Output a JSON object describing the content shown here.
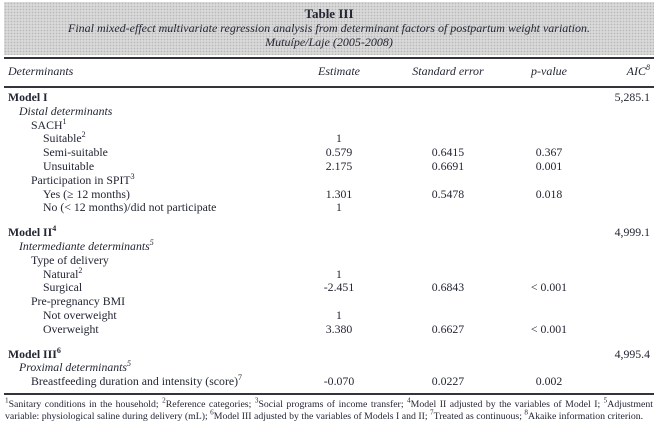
{
  "colors": {
    "header_bg": "#d9d9d9",
    "rule": "#33343c",
    "text": "#232633"
  },
  "title": {
    "number": "Table III",
    "caption": "Final mixed-effect multivariate regression analysis from determinant factors of postpartum weight variation.",
    "location": "Mutuípe/Laje (2005-2008)"
  },
  "columns": {
    "determinants": "Determinants",
    "estimate": "Estimate",
    "standard_error": "Standard error",
    "p_value": "p-value",
    "aic": "AIC",
    "aic_sup": "8"
  },
  "table": {
    "rows": [
      {
        "label": "Model I",
        "sup": "",
        "indent": 0,
        "style": "model",
        "estimate": "",
        "se": "",
        "p": "",
        "aic": "5,285.1"
      },
      {
        "label": "Distal determinants",
        "sup": "",
        "indent": 1,
        "style": "section",
        "estimate": "",
        "se": "",
        "p": "",
        "aic": ""
      },
      {
        "label": "SACH",
        "sup": "1",
        "indent": 2,
        "style": "plain",
        "estimate": "",
        "se": "",
        "p": "",
        "aic": ""
      },
      {
        "label": "Suitable",
        "sup": "2",
        "indent": 3,
        "style": "plain",
        "estimate": "1",
        "se": "",
        "p": "",
        "aic": ""
      },
      {
        "label": "Semi-suitable",
        "sup": "",
        "indent": 3,
        "style": "plain",
        "estimate": "0.579",
        "se": "0.6415",
        "p": "0.367",
        "aic": ""
      },
      {
        "label": "Unsuitable",
        "sup": "",
        "indent": 3,
        "style": "plain",
        "estimate": "2.175",
        "se": "0.6691",
        "p": "0.001",
        "aic": ""
      },
      {
        "label": "Participation in SPIT",
        "sup": "3",
        "indent": 2,
        "style": "plain",
        "estimate": "",
        "se": "",
        "p": "",
        "aic": ""
      },
      {
        "label": "Yes (≥ 12 months)",
        "sup": "",
        "indent": 3,
        "style": "plain",
        "estimate": "1.301",
        "se": "0.5478",
        "p": "0.018",
        "aic": ""
      },
      {
        "label": "No (< 12 months)/did not participate",
        "sup": "",
        "indent": 3,
        "style": "plain",
        "estimate": "1",
        "se": "",
        "p": "",
        "aic": ""
      },
      {
        "spacer": true
      },
      {
        "label": "Model II",
        "sup": "4",
        "indent": 0,
        "style": "model",
        "estimate": "",
        "se": "",
        "p": "",
        "aic": "4,999.1"
      },
      {
        "label": "Intermediante determinants",
        "sup": "5",
        "indent": 1,
        "style": "section",
        "estimate": "",
        "se": "",
        "p": "",
        "aic": ""
      },
      {
        "label": "Type of delivery",
        "sup": "",
        "indent": 2,
        "style": "plain",
        "estimate": "",
        "se": "",
        "p": "",
        "aic": ""
      },
      {
        "label": "Natural",
        "sup": "2",
        "indent": 3,
        "style": "plain",
        "estimate": "1",
        "se": "",
        "p": "",
        "aic": ""
      },
      {
        "label": "Surgical",
        "sup": "",
        "indent": 3,
        "style": "plain",
        "estimate": "-2.451",
        "se": "0.6843",
        "p": "< 0.001",
        "aic": ""
      },
      {
        "label": "Pre-pregnancy BMI",
        "sup": "",
        "indent": 2,
        "style": "plain",
        "estimate": "",
        "se": "",
        "p": "",
        "aic": ""
      },
      {
        "label": "Not overweight",
        "sup": "",
        "indent": 3,
        "style": "plain",
        "estimate": "1",
        "se": "",
        "p": "",
        "aic": ""
      },
      {
        "label": "Overweight",
        "sup": "",
        "indent": 3,
        "style": "plain",
        "estimate": "3.380",
        "se": "0.6627",
        "p": "< 0.001",
        "aic": ""
      },
      {
        "spacer": true
      },
      {
        "label": "Model III",
        "sup": "6",
        "indent": 0,
        "style": "model",
        "estimate": "",
        "se": "",
        "p": "",
        "aic": "4,995.4"
      },
      {
        "label": "Proximal determinants",
        "sup": "5",
        "indent": 1,
        "style": "section",
        "estimate": "",
        "se": "",
        "p": "",
        "aic": ""
      },
      {
        "label": "Breastfeeding duration and intensity (score)",
        "sup": "7",
        "indent": 2,
        "style": "plain",
        "estimate": "-0.070",
        "se": "0.0227",
        "p": "0.002",
        "aic": ""
      }
    ]
  },
  "footnotes": [
    {
      "sup": "1",
      "text": "Sanitary conditions in the household; "
    },
    {
      "sup": "2",
      "text": "Reference categories; "
    },
    {
      "sup": "3",
      "text": "Social programs of income transfer; "
    },
    {
      "sup": "4",
      "text": "Model II adjusted by the variables of Model I; "
    },
    {
      "sup": "5",
      "text": "Adjustment variable: physiological saline during delivery (mL); "
    },
    {
      "sup": "6",
      "text": "Model III adjusted by the variables of Models I and II; "
    },
    {
      "sup": "7",
      "text": "Treated as continuous; "
    },
    {
      "sup": "8",
      "text": "Akaike information criterion."
    }
  ]
}
